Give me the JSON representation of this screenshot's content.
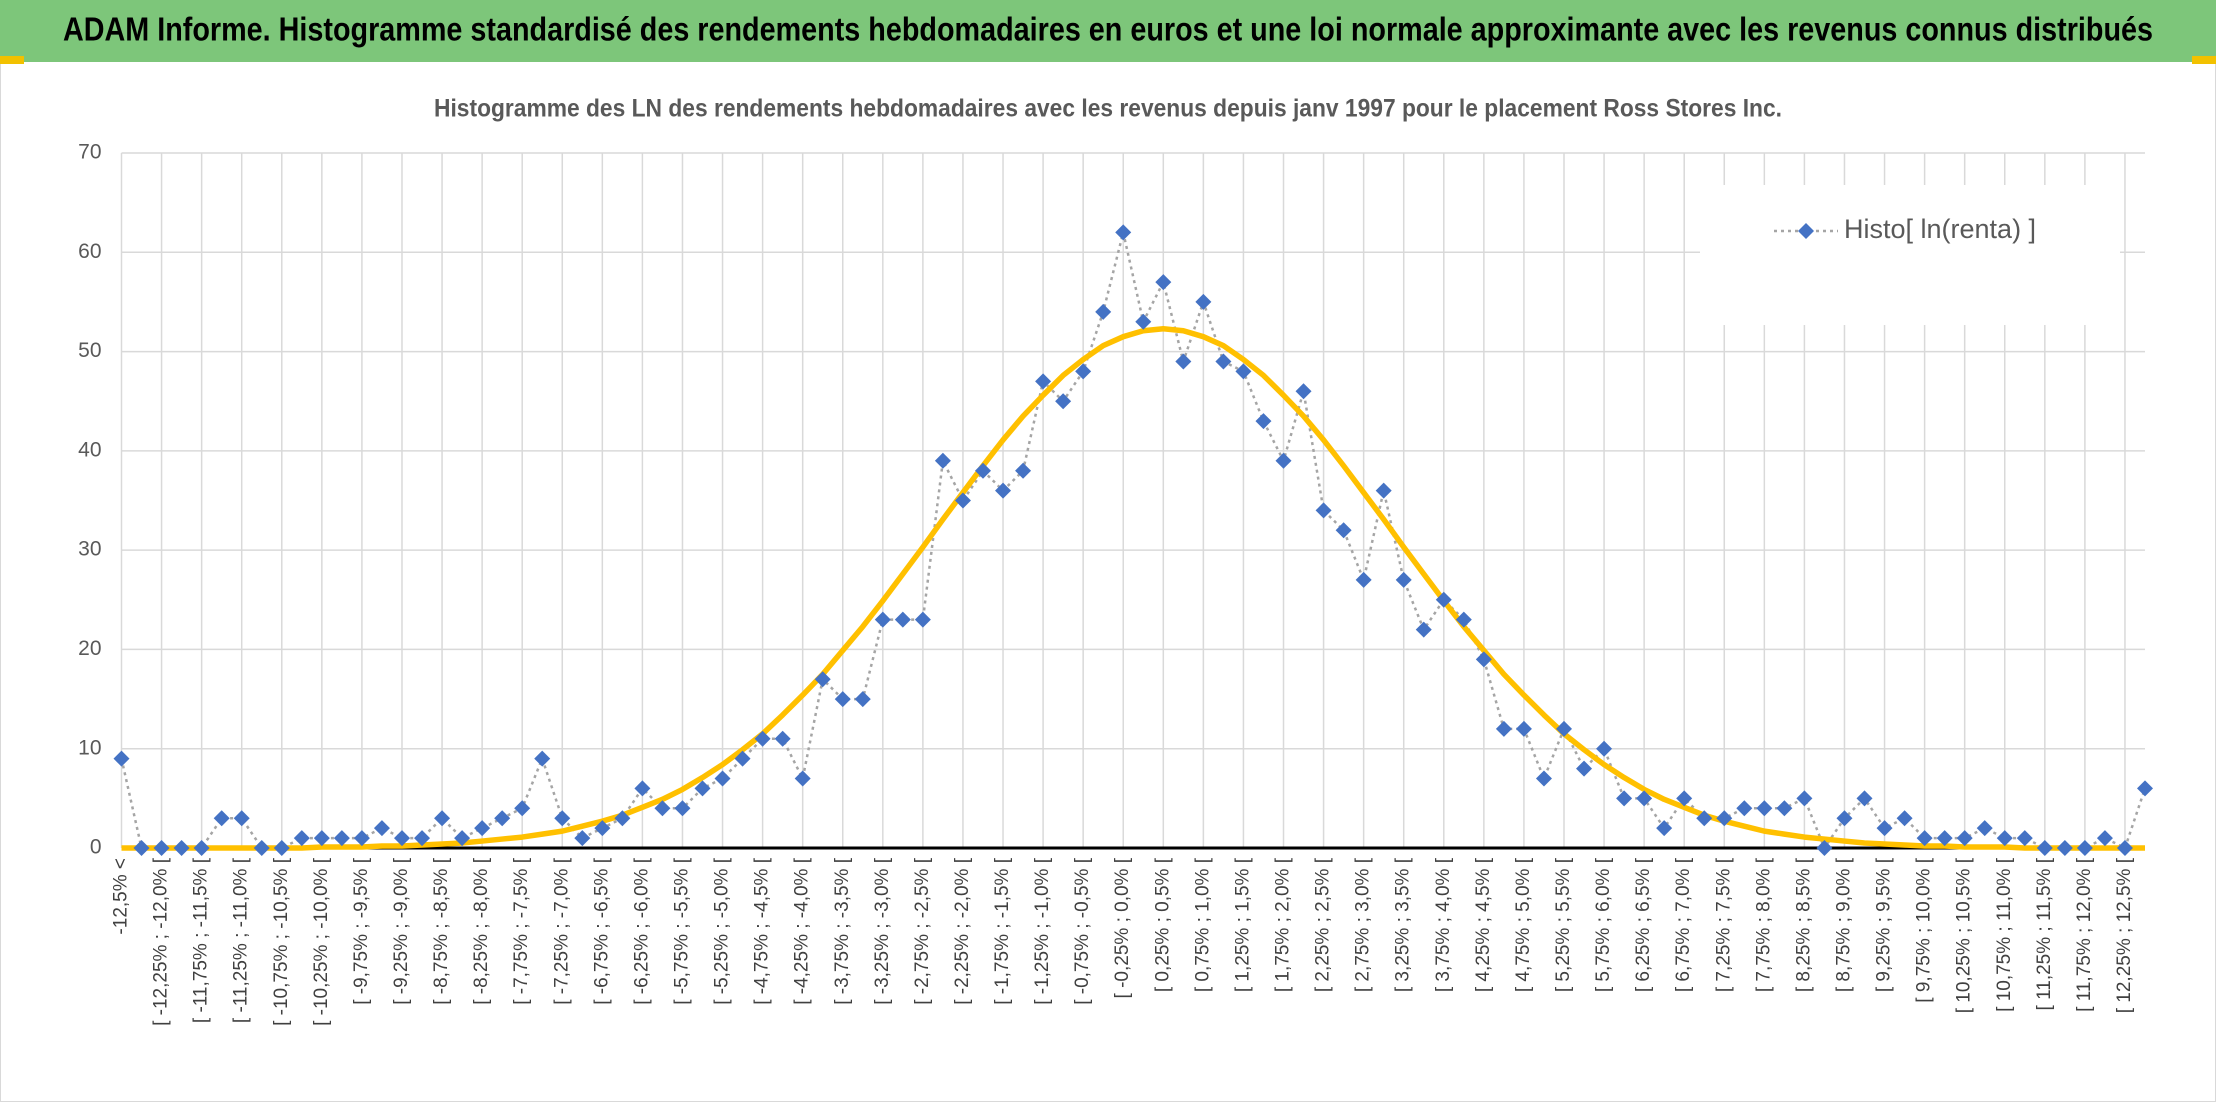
{
  "header": {
    "title": "ADAM Informe. Histogramme standardisé des rendements hebdomadaires en euros et une loi normale approximante avec les revenus connus distribués"
  },
  "chart_data": {
    "type": "line",
    "title": "Histogramme des LN des rendements hebdomadaires avec les revenus depuis janv 1997 pour le placement Ross Stores Inc.",
    "categories": [
      "-12,5% <",
      null,
      "[ -12,25% ; -12,0% [",
      null,
      "[ -11,75% ; -11,5% [",
      null,
      "[ -11,25% ; -11,0% [",
      null,
      "[ -10,75% ; -10,5% [",
      null,
      "[ -10,25% ; -10,0% [",
      null,
      "[ -9,75% ; -9,5% [",
      null,
      "[ -9,25% ; -9,0% [",
      null,
      "[ -8,75% ; -8,5% [",
      null,
      "[ -8,25% ; -8,0% [",
      null,
      "[ -7,75% ; -7,5% [",
      null,
      "[ -7,25% ; -7,0% [",
      null,
      "[ -6,75% ; -6,5% [",
      null,
      "[ -6,25% ; -6,0% [",
      null,
      "[ -5,75% ; -5,5% [",
      null,
      "[ -5,25% ; -5,0% [",
      null,
      "[ -4,75% ; -4,5% [",
      null,
      "[ -4,25% ; -4,0% [",
      null,
      "[ -3,75% ; -3,5% [",
      null,
      "[ -3,25% ; -3,0% [",
      null,
      "[ -2,75% ; -2,5% [",
      null,
      "[ -2,25% ; -2,0% [",
      null,
      "[ -1,75% ; -1,5% [",
      null,
      "[ -1,25% ; -1,0% [",
      null,
      "[ -0,75% ; -0,5% [",
      null,
      "[ -0,25% ; 0,0% [",
      null,
      "[ 0,25% ; 0,5% [",
      null,
      "[ 0,75% ; 1,0% [",
      null,
      "[ 1,25% ; 1,5% [",
      null,
      "[ 1,75% ; 2,0% [",
      null,
      "[ 2,25% ; 2,5% [",
      null,
      "[ 2,75% ; 3,0% [",
      null,
      "[ 3,25% ; 3,5% [",
      null,
      "[ 3,75% ; 4,0% [",
      null,
      "[ 4,25% ; 4,5% [",
      null,
      "[ 4,75% ; 5,0% [",
      null,
      "[ 5,25% ; 5,5% [",
      null,
      "[ 5,75% ; 6,0% [",
      null,
      "[ 6,25% ; 6,5% [",
      null,
      "[ 6,75% ; 7,0% [",
      null,
      "[ 7,25% ; 7,5% [",
      null,
      "[ 7,75% ; 8,0% [",
      null,
      "[ 8,25% ; 8,5% [",
      null,
      "[ 8,75% ; 9,0% [",
      null,
      "[ 9,25% ; 9,5% [",
      null,
      "[ 9,75% ; 10,0% [",
      null,
      "[ 10,25% ; 10,5% [",
      null,
      "[ 10,75% ; 11,0% [",
      null,
      "[ 11,25% ; 11,5% [",
      null,
      "[ 11,75% ; 12,0% [",
      null,
      "[ 12,25% ; 12,5% [",
      null
    ],
    "series": [
      {
        "name": "Histo[ ln(renta) ]",
        "color": "#4472c4",
        "values": [
          9,
          0,
          0,
          0,
          0,
          3,
          3,
          0,
          0,
          1,
          1,
          1,
          1,
          2,
          1,
          1,
          3,
          1,
          2,
          3,
          4,
          9,
          3,
          1,
          2,
          3,
          6,
          4,
          4,
          6,
          7,
          9,
          11,
          11,
          7,
          17,
          15,
          15,
          23,
          23,
          23,
          39,
          35,
          38,
          36,
          38,
          47,
          45,
          48,
          54,
          62,
          53,
          57,
          49,
          55,
          49,
          48,
          43,
          39,
          46,
          34,
          32,
          27,
          36,
          27,
          22,
          25,
          23,
          19,
          12,
          12,
          7,
          12,
          8,
          10,
          5,
          5,
          2,
          5,
          3,
          3,
          4,
          4,
          4,
          5,
          0,
          3,
          5,
          2,
          3,
          1,
          1,
          1,
          2,
          1,
          1,
          0,
          0,
          0,
          1,
          0,
          6
        ]
      },
      {
        "color": "#ffc000",
        "values": [
          0,
          0,
          0,
          0,
          0,
          0,
          0,
          0,
          0,
          0,
          0.1,
          0.1,
          0.1,
          0.2,
          0.2,
          0.3,
          0.4,
          0.5,
          0.7,
          0.9,
          1.1,
          1.4,
          1.7,
          2.2,
          2.7,
          3.3,
          4.1,
          4.9,
          5.9,
          7.1,
          8.4,
          9.9,
          11.5,
          13.4,
          15.4,
          17.5,
          19.9,
          22.3,
          24.9,
          27.6,
          30.3,
          33.1,
          35.8,
          38.5,
          41.1,
          43.5,
          45.6,
          47.6,
          49.2,
          50.6,
          51.5,
          52.1,
          52.3,
          52.1,
          51.5,
          50.6,
          49.2,
          47.6,
          45.6,
          43.5,
          41.1,
          38.5,
          35.8,
          33.1,
          30.3,
          27.6,
          24.9,
          22.3,
          19.9,
          17.5,
          15.4,
          13.4,
          11.5,
          9.9,
          8.4,
          7.1,
          5.9,
          4.9,
          4.1,
          3.3,
          2.7,
          2.2,
          1.7,
          1.4,
          1.1,
          0.9,
          0.7,
          0.5,
          0.4,
          0.3,
          0.2,
          0.2,
          0.1,
          0.1,
          0.1,
          0,
          0,
          0,
          0,
          0,
          0,
          0
        ]
      }
    ],
    "ylim": [
      0,
      70
    ],
    "yticks": [
      0,
      10,
      20,
      30,
      40,
      50,
      60,
      70
    ],
    "grid": true,
    "legend": "upper right"
  }
}
